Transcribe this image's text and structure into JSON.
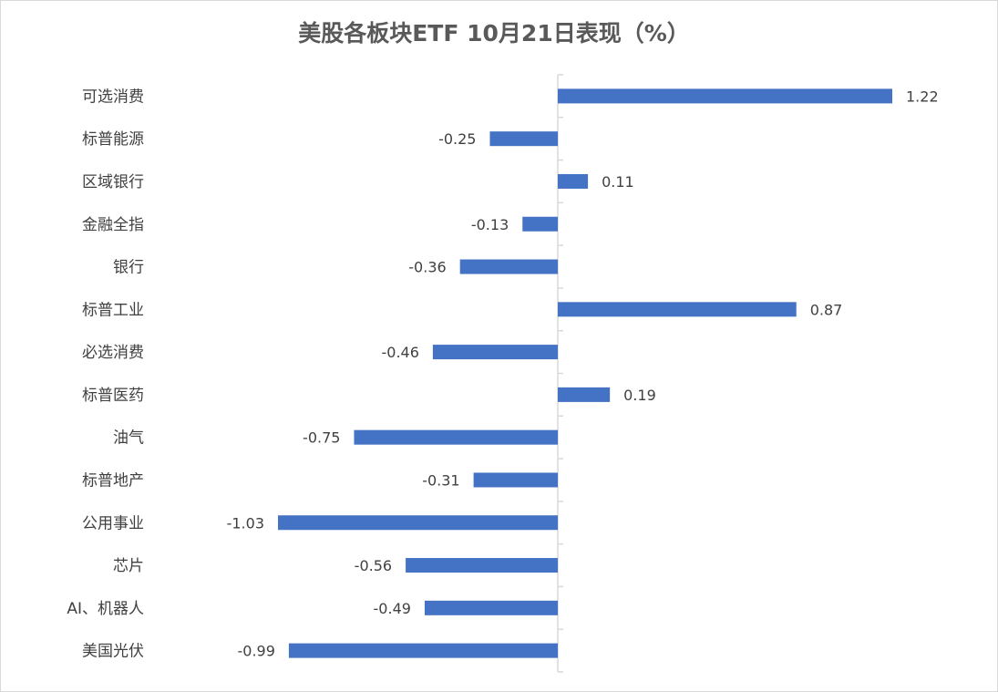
{
  "chart_data": {
    "type": "bar",
    "orientation": "horizontal",
    "title": "美股各板块ETF  10月21日表现（%）",
    "categories": [
      "可选消费",
      "标普能源",
      "区域银行",
      "金融全指",
      "银行",
      "标普工业",
      "必选消费",
      "标普医药",
      "油气",
      "标普地产",
      "公用事业",
      "芯片",
      "AI、机器人",
      "美国光伏"
    ],
    "values": [
      1.22,
      -0.25,
      0.11,
      -0.13,
      -0.36,
      0.87,
      -0.46,
      0.19,
      -0.75,
      -0.31,
      -1.03,
      -0.56,
      -0.49,
      -0.99
    ],
    "value_labels": [
      "1.22",
      "-0.25",
      "0.11",
      "-0.13",
      "-0.36",
      "0.87",
      "-0.46",
      "0.19",
      "-0.75",
      "-0.31",
      "-1.03",
      "-0.56",
      "-0.49",
      "-0.99"
    ],
    "xlim": [
      -1.03,
      1.22
    ],
    "grid": false,
    "legend": "none",
    "bar_color": "#4472c4"
  }
}
